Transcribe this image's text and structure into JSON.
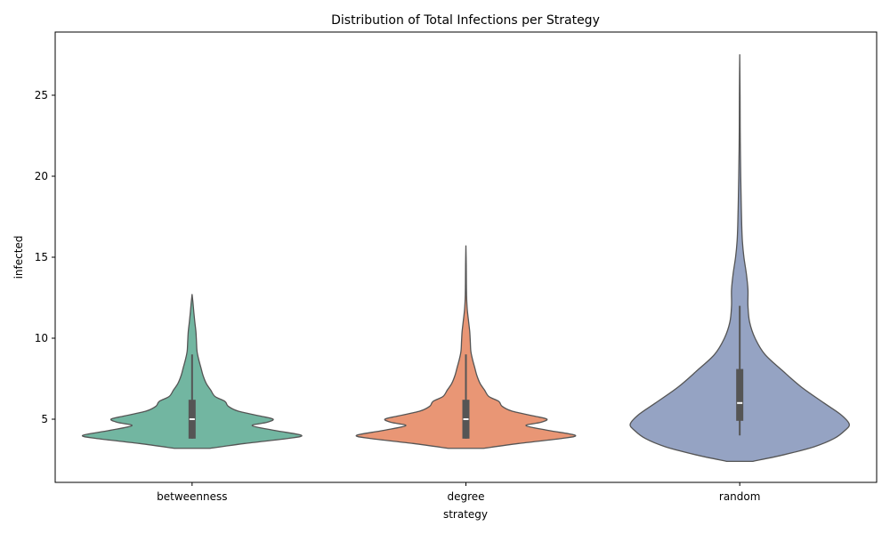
{
  "chart_data": {
    "type": "violin",
    "title": "Distribution of Total Infections per Strategy",
    "xlabel": "strategy",
    "ylabel": "infected",
    "categories": [
      "betweenness",
      "degree",
      "random"
    ],
    "ylim": [
      1.1,
      28.9
    ],
    "yticks": [
      5,
      10,
      15,
      20,
      25
    ],
    "grid": false,
    "colors": {
      "betweenness": "#72b6a1",
      "degree": "#e99675",
      "random": "#95a3c3",
      "edge": "#555555"
    },
    "series": [
      {
        "category": "betweenness",
        "extent": [
          3.2,
          12.7
        ],
        "box": {
          "q1": 3.8,
          "median": 5,
          "q3": 6.2,
          "whisker_low": 3.8,
          "whisker_high": 9
        },
        "density": [
          [
            3.2,
            0.16
          ],
          [
            3.5,
            0.48
          ],
          [
            3.8,
            0.86
          ],
          [
            4.0,
            1.0
          ],
          [
            4.3,
            0.76
          ],
          [
            4.6,
            0.55
          ],
          [
            4.8,
            0.68
          ],
          [
            5.0,
            0.74
          ],
          [
            5.2,
            0.62
          ],
          [
            5.5,
            0.42
          ],
          [
            5.8,
            0.33
          ],
          [
            6.1,
            0.3
          ],
          [
            6.4,
            0.21
          ],
          [
            6.8,
            0.17
          ],
          [
            7.2,
            0.13
          ],
          [
            7.7,
            0.1
          ],
          [
            8.2,
            0.08
          ],
          [
            8.7,
            0.06
          ],
          [
            9.2,
            0.045
          ],
          [
            9.8,
            0.04
          ],
          [
            10.4,
            0.035
          ],
          [
            11.0,
            0.025
          ],
          [
            11.6,
            0.016
          ],
          [
            12.2,
            0.008
          ],
          [
            12.7,
            0.0
          ]
        ]
      },
      {
        "category": "degree",
        "extent": [
          3.2,
          15.7
        ],
        "box": {
          "q1": 3.8,
          "median": 5,
          "q3": 6.2,
          "whisker_low": 3.8,
          "whisker_high": 9
        },
        "density": [
          [
            3.2,
            0.16
          ],
          [
            3.5,
            0.48
          ],
          [
            3.8,
            0.86
          ],
          [
            4.0,
            1.0
          ],
          [
            4.3,
            0.76
          ],
          [
            4.6,
            0.55
          ],
          [
            4.8,
            0.68
          ],
          [
            5.0,
            0.74
          ],
          [
            5.2,
            0.62
          ],
          [
            5.5,
            0.42
          ],
          [
            5.8,
            0.33
          ],
          [
            6.1,
            0.3
          ],
          [
            6.4,
            0.21
          ],
          [
            6.8,
            0.17
          ],
          [
            7.2,
            0.13
          ],
          [
            7.7,
            0.1
          ],
          [
            8.2,
            0.08
          ],
          [
            8.7,
            0.06
          ],
          [
            9.2,
            0.045
          ],
          [
            9.8,
            0.04
          ],
          [
            10.4,
            0.035
          ],
          [
            11.0,
            0.025
          ],
          [
            11.8,
            0.012
          ],
          [
            12.6,
            0.006
          ],
          [
            13.5,
            0.004
          ],
          [
            14.5,
            0.003
          ],
          [
            15.7,
            0.0
          ]
        ]
      },
      {
        "category": "random",
        "extent": [
          2.4,
          27.5
        ],
        "box": {
          "q1": 4.9,
          "median": 6,
          "q3": 8.1,
          "whisker_low": 4,
          "whisker_high": 12
        },
        "density": [
          [
            2.4,
            0.12
          ],
          [
            2.8,
            0.4
          ],
          [
            3.3,
            0.68
          ],
          [
            3.8,
            0.86
          ],
          [
            4.3,
            0.96
          ],
          [
            4.7,
            1.0
          ],
          [
            5.3,
            0.92
          ],
          [
            6.0,
            0.77
          ],
          [
            7.0,
            0.56
          ],
          [
            8.0,
            0.39
          ],
          [
            9.0,
            0.23
          ],
          [
            10.0,
            0.14
          ],
          [
            11.0,
            0.09
          ],
          [
            12.0,
            0.075
          ],
          [
            13.0,
            0.075
          ],
          [
            14.0,
            0.06
          ],
          [
            15.0,
            0.038
          ],
          [
            16.0,
            0.024
          ],
          [
            17.0,
            0.018
          ],
          [
            18.5,
            0.013
          ],
          [
            20.0,
            0.009
          ],
          [
            21.5,
            0.006
          ],
          [
            23.0,
            0.004
          ],
          [
            25.0,
            0.003
          ],
          [
            27.5,
            0.0
          ]
        ]
      }
    ]
  }
}
